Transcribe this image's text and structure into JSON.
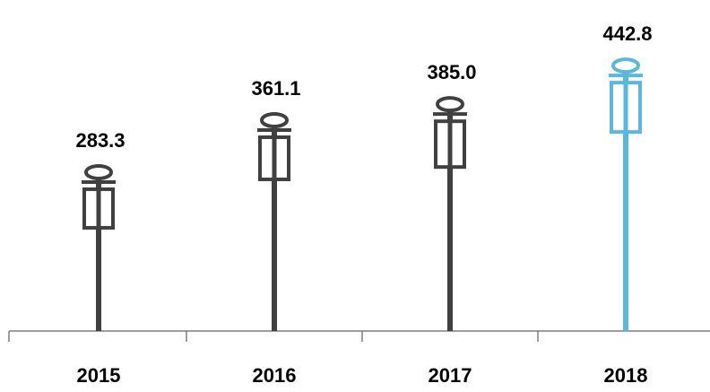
{
  "chart_data": {
    "type": "bar",
    "categories": [
      "2015",
      "2016",
      "2017",
      "2018"
    ],
    "values": [
      283.3,
      361.1,
      385.0,
      442.8
    ],
    "value_labels": [
      "283.3",
      "361.1",
      "385.0",
      "442.8"
    ],
    "title": "",
    "xlabel": "",
    "ylabel": "",
    "ylim": [
      0,
      480
    ],
    "grid": false,
    "legend": "none",
    "colors": {
      "default": "#404040",
      "highlight": "#5bb8dc",
      "axis": "#7f7f7f",
      "text": "#000000"
    },
    "highlight_index": 3
  }
}
